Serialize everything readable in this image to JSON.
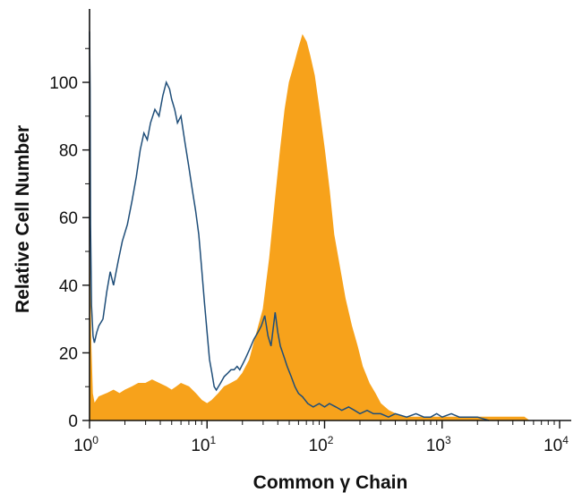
{
  "chart_data": {
    "type": "histogram",
    "title": "",
    "xlabel": "Common γ Chain",
    "ylabel": "Relative Cell Number",
    "x_scale": "log",
    "xlim": [
      1,
      10000
    ],
    "ylim": [
      0,
      118
    ],
    "x_ticks": [
      {
        "value": 1,
        "base": "10",
        "exp": "0"
      },
      {
        "value": 10,
        "base": "10",
        "exp": "1"
      },
      {
        "value": 100,
        "base": "10",
        "exp": "2"
      },
      {
        "value": 1000,
        "base": "10",
        "exp": "3"
      },
      {
        "value": 10000,
        "base": "10",
        "exp": "4"
      }
    ],
    "y_ticks": [
      0,
      20,
      40,
      60,
      80,
      100
    ],
    "grid": false,
    "legend": "none",
    "series": [
      {
        "style": "filled",
        "color": "#F7A21B",
        "points": [
          [
            1.0,
            52
          ],
          [
            1.03,
            22
          ],
          [
            1.06,
            8
          ],
          [
            1.1,
            5
          ],
          [
            1.2,
            7
          ],
          [
            1.4,
            8
          ],
          [
            1.6,
            9
          ],
          [
            1.8,
            8
          ],
          [
            2.0,
            9
          ],
          [
            2.3,
            10
          ],
          [
            2.6,
            11
          ],
          [
            3.0,
            11
          ],
          [
            3.4,
            12
          ],
          [
            3.9,
            11
          ],
          [
            4.5,
            10
          ],
          [
            5.0,
            9
          ],
          [
            5.5,
            10
          ],
          [
            6.0,
            11
          ],
          [
            7.0,
            10
          ],
          [
            8.0,
            8
          ],
          [
            9.0,
            6
          ],
          [
            10.0,
            5
          ],
          [
            11.0,
            6
          ],
          [
            12.5,
            8
          ],
          [
            14.0,
            10
          ],
          [
            16.0,
            11
          ],
          [
            18.0,
            12
          ],
          [
            20.0,
            14
          ],
          [
            23.0,
            18
          ],
          [
            26.0,
            25
          ],
          [
            30.0,
            33
          ],
          [
            34.0,
            48
          ],
          [
            38.0,
            65
          ],
          [
            42.0,
            80
          ],
          [
            46.0,
            92
          ],
          [
            50.0,
            100
          ],
          [
            55.0,
            105
          ],
          [
            60.0,
            110
          ],
          [
            65.0,
            114
          ],
          [
            70.0,
            112
          ],
          [
            75.0,
            108
          ],
          [
            82.0,
            102
          ],
          [
            90.0,
            92
          ],
          [
            100.0,
            80
          ],
          [
            110.0,
            68
          ],
          [
            120.0,
            55
          ],
          [
            135.0,
            45
          ],
          [
            150.0,
            36
          ],
          [
            170.0,
            28
          ],
          [
            190.0,
            22
          ],
          [
            210.0,
            16
          ],
          [
            240.0,
            11
          ],
          [
            270.0,
            8
          ],
          [
            300.0,
            5
          ],
          [
            350.0,
            3
          ],
          [
            400.0,
            2
          ],
          [
            500.0,
            1
          ],
          [
            600.0,
            1
          ],
          [
            1000.0,
            1
          ],
          [
            1500.0,
            1
          ],
          [
            2500.0,
            1
          ],
          [
            5000.0,
            1
          ],
          [
            5500.0,
            0
          ]
        ]
      },
      {
        "style": "outline",
        "color": "#1F4E79",
        "points": [
          [
            1.0,
            115
          ],
          [
            1.01,
            98
          ],
          [
            1.02,
            58
          ],
          [
            1.04,
            34
          ],
          [
            1.07,
            25
          ],
          [
            1.1,
            23
          ],
          [
            1.15,
            26
          ],
          [
            1.2,
            28
          ],
          [
            1.3,
            30
          ],
          [
            1.4,
            38
          ],
          [
            1.5,
            44
          ],
          [
            1.6,
            40
          ],
          [
            1.75,
            47
          ],
          [
            1.9,
            53
          ],
          [
            2.1,
            58
          ],
          [
            2.3,
            65
          ],
          [
            2.5,
            72
          ],
          [
            2.7,
            80
          ],
          [
            2.9,
            85
          ],
          [
            3.1,
            83
          ],
          [
            3.3,
            88
          ],
          [
            3.6,
            92
          ],
          [
            3.9,
            90
          ],
          [
            4.2,
            96
          ],
          [
            4.5,
            100
          ],
          [
            4.8,
            98
          ],
          [
            5.0,
            95
          ],
          [
            5.3,
            92
          ],
          [
            5.6,
            88
          ],
          [
            6.0,
            90
          ],
          [
            6.5,
            82
          ],
          [
            7.0,
            75
          ],
          [
            7.5,
            68
          ],
          [
            8.0,
            62
          ],
          [
            8.5,
            55
          ],
          [
            9.0,
            45
          ],
          [
            9.5,
            35
          ],
          [
            10.0,
            26
          ],
          [
            10.5,
            18
          ],
          [
            11.0,
            14
          ],
          [
            11.5,
            10
          ],
          [
            12.0,
            9
          ],
          [
            13.0,
            11
          ],
          [
            14.0,
            13
          ],
          [
            15.0,
            14
          ],
          [
            16.0,
            15
          ],
          [
            17.0,
            15
          ],
          [
            18.0,
            16
          ],
          [
            19.0,
            15
          ],
          [
            21.0,
            18
          ],
          [
            23.0,
            21
          ],
          [
            25.0,
            24
          ],
          [
            27.0,
            26
          ],
          [
            29.0,
            28
          ],
          [
            31.0,
            31
          ],
          [
            33.0,
            25
          ],
          [
            35.0,
            22
          ],
          [
            38.0,
            32
          ],
          [
            40.0,
            26
          ],
          [
            42.0,
            22
          ],
          [
            45.0,
            19
          ],
          [
            48.0,
            16
          ],
          [
            52.0,
            13
          ],
          [
            56.0,
            10
          ],
          [
            60.0,
            8
          ],
          [
            65.0,
            7
          ],
          [
            72.0,
            5
          ],
          [
            80.0,
            4
          ],
          [
            90.0,
            5
          ],
          [
            100.0,
            4
          ],
          [
            110.0,
            5
          ],
          [
            125.0,
            4
          ],
          [
            140.0,
            3
          ],
          [
            160.0,
            4
          ],
          [
            180.0,
            3
          ],
          [
            200.0,
            2
          ],
          [
            230.0,
            3
          ],
          [
            260.0,
            2
          ],
          [
            300.0,
            2
          ],
          [
            350.0,
            1
          ],
          [
            400.0,
            2
          ],
          [
            500.0,
            1
          ],
          [
            600.0,
            2
          ],
          [
            700.0,
            1
          ],
          [
            800.0,
            1
          ],
          [
            900.0,
            2
          ],
          [
            1000.0,
            1
          ],
          [
            1200.0,
            2
          ],
          [
            1400.0,
            1
          ],
          [
            1700.0,
            1
          ],
          [
            2000.0,
            1
          ],
          [
            2500.0,
            0
          ]
        ]
      }
    ]
  }
}
